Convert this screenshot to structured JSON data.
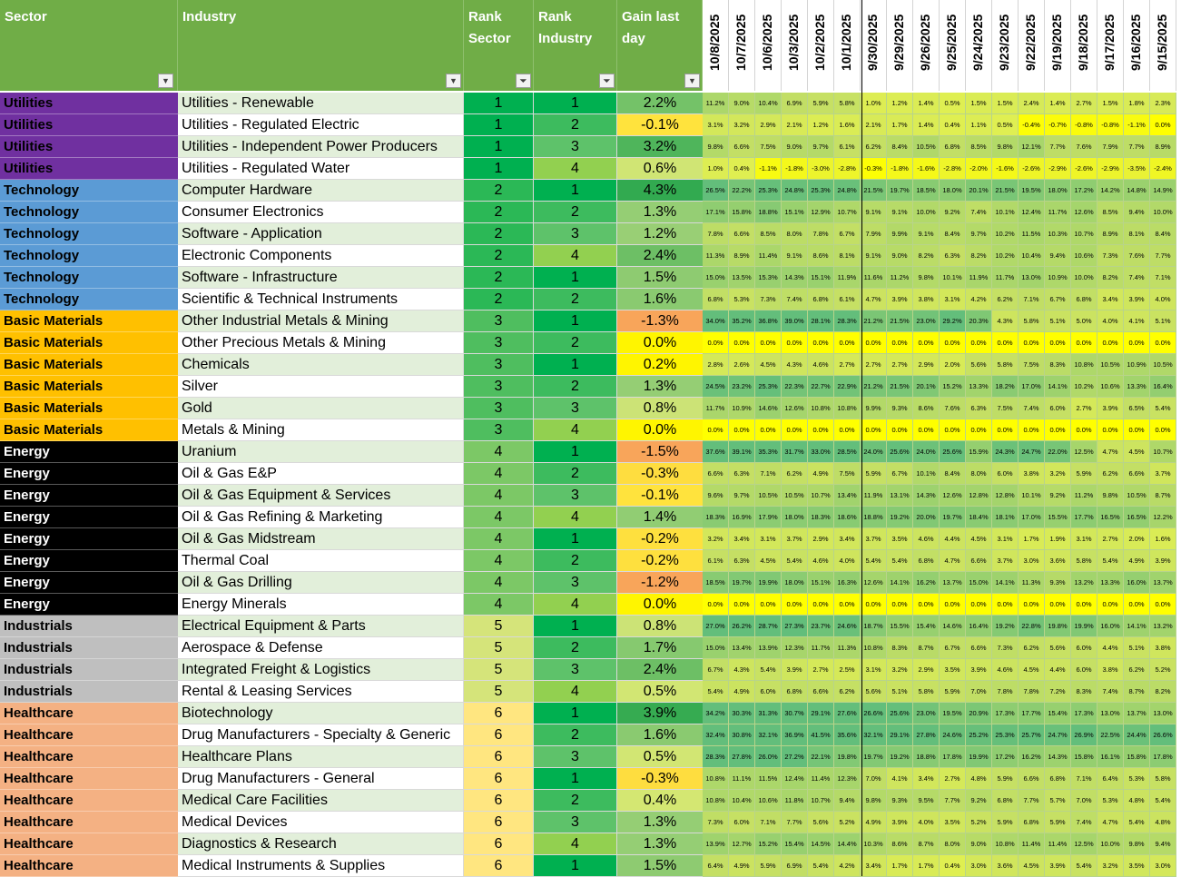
{
  "headers": {
    "sector": "Sector",
    "industry": "Industry",
    "rank_sector": "Rank\nSector",
    "rank_industry": "Rank\nIndustry",
    "gain": "Gain last\nday"
  },
  "dates": [
    "10/8/2025",
    "10/7/2025",
    "10/6/2025",
    "10/3/2025",
    "10/2/2025",
    "10/1/2025",
    "9/30/2025",
    "9/29/2025",
    "9/26/2025",
    "9/25/2025",
    "9/24/2025",
    "9/23/2025",
    "9/22/2025",
    "9/19/2025",
    "9/18/2025",
    "9/17/2025",
    "9/16/2025",
    "9/15/2025"
  ],
  "sector_colors": {
    "Utilities": {
      "bg": "#7030a0",
      "fg": "#000000"
    },
    "Technology": {
      "bg": "#5b9bd5",
      "fg": "#000000"
    },
    "Basic Materials": {
      "bg": "#ffc000",
      "fg": "#000000"
    },
    "Energy": {
      "bg": "#000000",
      "fg": "#ffffff"
    },
    "Industrials": {
      "bg": "#bfbfbf",
      "fg": "#000000"
    },
    "Healthcare": {
      "bg": "#f4b183",
      "fg": "#000000"
    }
  },
  "rows": [
    {
      "sector": "Utilities",
      "industry": "Utilities - Renewable",
      "rank_sector": "1",
      "rank_industry": "1",
      "gain": "2.2%",
      "history": [
        "11.2%",
        "9.0%",
        "10.4%",
        "6.9%",
        "5.9%",
        "5.8%",
        "1.0%",
        "1.2%",
        "1.4%",
        "0.5%",
        "1.5%",
        "1.5%",
        "2.4%",
        "1.4%",
        "2.7%",
        "1.5%",
        "1.8%",
        "2.3%"
      ]
    },
    {
      "sector": "Utilities",
      "industry": "Utilities - Regulated Electric",
      "rank_sector": "1",
      "rank_industry": "2",
      "gain": "-0.1%",
      "history": [
        "3.1%",
        "3.2%",
        "2.9%",
        "2.1%",
        "1.2%",
        "1.6%",
        "2.1%",
        "1.7%",
        "1.4%",
        "0.4%",
        "1.1%",
        "0.5%",
        "-0.4%",
        "-0.7%",
        "-0.8%",
        "-0.8%",
        "-1.1%",
        "0.0%"
      ]
    },
    {
      "sector": "Utilities",
      "industry": "Utilities - Independent Power Producers",
      "rank_sector": "1",
      "rank_industry": "3",
      "gain": "3.2%",
      "history": [
        "9.8%",
        "6.6%",
        "7.5%",
        "9.0%",
        "9.7%",
        "6.1%",
        "6.2%",
        "8.4%",
        "10.5%",
        "6.8%",
        "8.5%",
        "9.8%",
        "12.1%",
        "7.7%",
        "7.6%",
        "7.9%",
        "7.7%",
        "8.9%"
      ]
    },
    {
      "sector": "Utilities",
      "industry": "Utilities - Regulated Water",
      "rank_sector": "1",
      "rank_industry": "4",
      "gain": "0.6%",
      "history": [
        "1.0%",
        "0.4%",
        "-1.1%",
        "-1.8%",
        "-3.0%",
        "-2.8%",
        "-0.3%",
        "-1.8%",
        "-1.6%",
        "-2.8%",
        "-2.0%",
        "-1.6%",
        "-2.6%",
        "-2.9%",
        "-2.6%",
        "-2.9%",
        "-3.5%",
        "-2.4%"
      ]
    },
    {
      "sector": "Technology",
      "industry": "Computer Hardware",
      "rank_sector": "2",
      "rank_industry": "1",
      "gain": "4.3%",
      "history": [
        "26.5%",
        "22.2%",
        "25.3%",
        "24.8%",
        "25.3%",
        "24.8%",
        "21.5%",
        "19.7%",
        "18.5%",
        "18.0%",
        "20.1%",
        "21.5%",
        "19.5%",
        "18.0%",
        "17.2%",
        "14.2%",
        "14.8%",
        "14.9%"
      ]
    },
    {
      "sector": "Technology",
      "industry": "Consumer Electronics",
      "rank_sector": "2",
      "rank_industry": "2",
      "gain": "1.3%",
      "history": [
        "17.1%",
        "15.8%",
        "18.8%",
        "15.1%",
        "12.9%",
        "10.7%",
        "9.1%",
        "9.1%",
        "10.0%",
        "9.2%",
        "7.4%",
        "10.1%",
        "12.4%",
        "11.7%",
        "12.6%",
        "8.5%",
        "9.4%",
        "10.0%"
      ]
    },
    {
      "sector": "Technology",
      "industry": "Software - Application",
      "rank_sector": "2",
      "rank_industry": "3",
      "gain": "1.2%",
      "history": [
        "7.8%",
        "6.6%",
        "8.5%",
        "8.0%",
        "7.8%",
        "6.7%",
        "7.9%",
        "9.9%",
        "9.1%",
        "8.4%",
        "9.7%",
        "10.2%",
        "11.5%",
        "10.3%",
        "10.7%",
        "8.9%",
        "8.1%",
        "8.4%"
      ]
    },
    {
      "sector": "Technology",
      "industry": "Electronic Components",
      "rank_sector": "2",
      "rank_industry": "4",
      "gain": "2.4%",
      "history": [
        "11.3%",
        "8.9%",
        "11.4%",
        "9.1%",
        "8.6%",
        "8.1%",
        "9.1%",
        "9.0%",
        "8.2%",
        "6.3%",
        "8.2%",
        "10.2%",
        "10.4%",
        "9.4%",
        "10.6%",
        "7.3%",
        "7.6%",
        "7.7%"
      ]
    },
    {
      "sector": "Technology",
      "industry": "Software - Infrastructure",
      "rank_sector": "2",
      "rank_industry": "1",
      "gain": "1.5%",
      "history": [
        "15.0%",
        "13.5%",
        "15.3%",
        "14.3%",
        "15.1%",
        "11.9%",
        "11.6%",
        "11.2%",
        "9.8%",
        "10.1%",
        "11.9%",
        "11.7%",
        "13.0%",
        "10.9%",
        "10.0%",
        "8.2%",
        "7.4%",
        "7.1%"
      ]
    },
    {
      "sector": "Technology",
      "industry": "Scientific & Technical Instruments",
      "rank_sector": "2",
      "rank_industry": "2",
      "gain": "1.6%",
      "history": [
        "6.8%",
        "5.3%",
        "7.3%",
        "7.4%",
        "6.8%",
        "6.1%",
        "4.7%",
        "3.9%",
        "3.8%",
        "3.1%",
        "4.2%",
        "6.2%",
        "7.1%",
        "6.7%",
        "6.8%",
        "3.4%",
        "3.9%",
        "4.0%"
      ]
    },
    {
      "sector": "Basic Materials",
      "industry": "Other Industrial Metals & Mining",
      "rank_sector": "3",
      "rank_industry": "1",
      "gain": "-1.3%",
      "history": [
        "34.0%",
        "35.2%",
        "36.8%",
        "39.0%",
        "28.1%",
        "28.3%",
        "21.2%",
        "21.5%",
        "23.0%",
        "29.2%",
        "20.3%",
        "4.3%",
        "5.8%",
        "5.1%",
        "5.0%",
        "4.0%",
        "4.1%",
        "5.1%"
      ]
    },
    {
      "sector": "Basic Materials",
      "industry": "Other Precious Metals & Mining",
      "rank_sector": "3",
      "rank_industry": "2",
      "gain": "0.0%",
      "history": [
        "0.0%",
        "0.0%",
        "0.0%",
        "0.0%",
        "0.0%",
        "0.0%",
        "0.0%",
        "0.0%",
        "0.0%",
        "0.0%",
        "0.0%",
        "0.0%",
        "0.0%",
        "0.0%",
        "0.0%",
        "0.0%",
        "0.0%",
        "0.0%"
      ]
    },
    {
      "sector": "Basic Materials",
      "industry": "Chemicals",
      "rank_sector": "3",
      "rank_industry": "1",
      "gain": "0.2%",
      "history": [
        "2.8%",
        "2.6%",
        "4.5%",
        "4.3%",
        "4.6%",
        "2.7%",
        "2.7%",
        "2.7%",
        "2.9%",
        "2.0%",
        "5.6%",
        "5.8%",
        "7.5%",
        "8.3%",
        "10.8%",
        "10.5%",
        "10.9%",
        "10.5%"
      ]
    },
    {
      "sector": "Basic Materials",
      "industry": "Silver",
      "rank_sector": "3",
      "rank_industry": "2",
      "gain": "1.3%",
      "history": [
        "24.5%",
        "23.2%",
        "25.3%",
        "22.3%",
        "22.7%",
        "22.9%",
        "21.2%",
        "21.5%",
        "20.1%",
        "15.2%",
        "13.3%",
        "18.2%",
        "17.0%",
        "14.1%",
        "10.2%",
        "10.6%",
        "13.3%",
        "16.4%"
      ]
    },
    {
      "sector": "Basic Materials",
      "industry": "Gold",
      "rank_sector": "3",
      "rank_industry": "3",
      "gain": "0.8%",
      "history": [
        "11.7%",
        "10.9%",
        "14.6%",
        "12.6%",
        "10.8%",
        "10.8%",
        "9.9%",
        "9.3%",
        "8.6%",
        "7.6%",
        "6.3%",
        "7.5%",
        "7.4%",
        "6.0%",
        "2.7%",
        "3.9%",
        "6.5%",
        "5.4%"
      ]
    },
    {
      "sector": "Basic Materials",
      "industry": "Metals & Mining",
      "rank_sector": "3",
      "rank_industry": "4",
      "gain": "0.0%",
      "history": [
        "0.0%",
        "0.0%",
        "0.0%",
        "0.0%",
        "0.0%",
        "0.0%",
        "0.0%",
        "0.0%",
        "0.0%",
        "0.0%",
        "0.0%",
        "0.0%",
        "0.0%",
        "0.0%",
        "0.0%",
        "0.0%",
        "0.0%",
        "0.0%"
      ]
    },
    {
      "sector": "Energy",
      "industry": "Uranium",
      "rank_sector": "4",
      "rank_industry": "1",
      "gain": "-1.5%",
      "history": [
        "37.6%",
        "39.1%",
        "35.3%",
        "31.7%",
        "33.0%",
        "28.5%",
        "24.0%",
        "25.6%",
        "24.0%",
        "25.6%",
        "15.9%",
        "24.3%",
        "24.7%",
        "22.0%",
        "12.5%",
        "4.7%",
        "4.5%",
        "10.7%"
      ]
    },
    {
      "sector": "Energy",
      "industry": "Oil & Gas E&P",
      "rank_sector": "4",
      "rank_industry": "2",
      "gain": "-0.3%",
      "history": [
        "6.6%",
        "6.3%",
        "7.1%",
        "6.2%",
        "4.9%",
        "7.5%",
        "5.9%",
        "6.7%",
        "10.1%",
        "8.4%",
        "8.0%",
        "6.0%",
        "3.8%",
        "3.2%",
        "5.9%",
        "6.2%",
        "6.6%",
        "3.7%"
      ]
    },
    {
      "sector": "Energy",
      "industry": "Oil & Gas Equipment & Services",
      "rank_sector": "4",
      "rank_industry": "3",
      "gain": "-0.1%",
      "history": [
        "9.6%",
        "9.7%",
        "10.5%",
        "10.5%",
        "10.7%",
        "13.4%",
        "11.9%",
        "13.1%",
        "14.3%",
        "12.6%",
        "12.8%",
        "12.8%",
        "10.1%",
        "9.2%",
        "11.2%",
        "9.8%",
        "10.5%",
        "8.7%"
      ]
    },
    {
      "sector": "Energy",
      "industry": "Oil & Gas Refining & Marketing",
      "rank_sector": "4",
      "rank_industry": "4",
      "gain": "1.4%",
      "history": [
        "18.3%",
        "16.9%",
        "17.9%",
        "18.0%",
        "18.3%",
        "18.6%",
        "18.8%",
        "19.2%",
        "20.0%",
        "19.7%",
        "18.4%",
        "18.1%",
        "17.0%",
        "15.5%",
        "17.7%",
        "16.5%",
        "16.5%",
        "12.2%"
      ]
    },
    {
      "sector": "Energy",
      "industry": "Oil & Gas Midstream",
      "rank_sector": "4",
      "rank_industry": "1",
      "gain": "-0.2%",
      "history": [
        "3.2%",
        "3.4%",
        "3.1%",
        "3.7%",
        "2.9%",
        "3.4%",
        "3.7%",
        "3.5%",
        "4.6%",
        "4.4%",
        "4.5%",
        "3.1%",
        "1.7%",
        "1.9%",
        "3.1%",
        "2.7%",
        "2.0%",
        "1.6%"
      ]
    },
    {
      "sector": "Energy",
      "industry": "Thermal Coal",
      "rank_sector": "4",
      "rank_industry": "2",
      "gain": "-0.2%",
      "history": [
        "6.1%",
        "6.3%",
        "4.5%",
        "5.4%",
        "4.6%",
        "4.0%",
        "5.4%",
        "5.4%",
        "6.8%",
        "4.7%",
        "6.6%",
        "3.7%",
        "3.0%",
        "3.6%",
        "5.8%",
        "5.4%",
        "4.9%",
        "3.9%"
      ]
    },
    {
      "sector": "Energy",
      "industry": "Oil & Gas Drilling",
      "rank_sector": "4",
      "rank_industry": "3",
      "gain": "-1.2%",
      "history": [
        "18.5%",
        "19.7%",
        "19.9%",
        "18.0%",
        "15.1%",
        "16.3%",
        "12.6%",
        "14.1%",
        "16.2%",
        "13.7%",
        "15.0%",
        "14.1%",
        "11.3%",
        "9.3%",
        "13.2%",
        "13.3%",
        "16.0%",
        "13.7%"
      ]
    },
    {
      "sector": "Energy",
      "industry": "Energy Minerals",
      "rank_sector": "4",
      "rank_industry": "4",
      "gain": "0.0%",
      "history": [
        "0.0%",
        "0.0%",
        "0.0%",
        "0.0%",
        "0.0%",
        "0.0%",
        "0.0%",
        "0.0%",
        "0.0%",
        "0.0%",
        "0.0%",
        "0.0%",
        "0.0%",
        "0.0%",
        "0.0%",
        "0.0%",
        "0.0%",
        "0.0%"
      ]
    },
    {
      "sector": "Industrials",
      "industry": "Electrical Equipment & Parts",
      "rank_sector": "5",
      "rank_industry": "1",
      "gain": "0.8%",
      "history": [
        "27.0%",
        "26.2%",
        "28.7%",
        "27.3%",
        "23.7%",
        "24.6%",
        "18.7%",
        "15.5%",
        "15.4%",
        "14.6%",
        "16.4%",
        "19.2%",
        "22.8%",
        "19.8%",
        "19.9%",
        "16.0%",
        "14.1%",
        "13.2%"
      ]
    },
    {
      "sector": "Industrials",
      "industry": "Aerospace & Defense",
      "rank_sector": "5",
      "rank_industry": "2",
      "gain": "1.7%",
      "history": [
        "15.0%",
        "13.4%",
        "13.9%",
        "12.3%",
        "11.7%",
        "11.3%",
        "10.8%",
        "8.3%",
        "8.7%",
        "6.7%",
        "6.6%",
        "7.3%",
        "6.2%",
        "5.6%",
        "6.0%",
        "4.4%",
        "5.1%",
        "3.8%"
      ]
    },
    {
      "sector": "Industrials",
      "industry": "Integrated Freight & Logistics",
      "rank_sector": "5",
      "rank_industry": "3",
      "gain": "2.4%",
      "history": [
        "6.7%",
        "4.3%",
        "5.4%",
        "3.9%",
        "2.7%",
        "2.5%",
        "3.1%",
        "3.2%",
        "2.9%",
        "3.5%",
        "3.9%",
        "4.6%",
        "4.5%",
        "4.4%",
        "6.0%",
        "3.8%",
        "6.2%",
        "5.2%"
      ]
    },
    {
      "sector": "Industrials",
      "industry": "Rental & Leasing Services",
      "rank_sector": "5",
      "rank_industry": "4",
      "gain": "0.5%",
      "history": [
        "5.4%",
        "4.9%",
        "6.0%",
        "6.8%",
        "6.6%",
        "6.2%",
        "5.6%",
        "5.1%",
        "5.8%",
        "5.9%",
        "7.0%",
        "7.8%",
        "7.8%",
        "7.2%",
        "8.3%",
        "7.4%",
        "8.7%",
        "8.2%"
      ]
    },
    {
      "sector": "Healthcare",
      "industry": "Biotechnology",
      "rank_sector": "6",
      "rank_industry": "1",
      "gain": "3.9%",
      "history": [
        "34.2%",
        "30.3%",
        "31.3%",
        "30.7%",
        "29.1%",
        "27.6%",
        "26.6%",
        "25.6%",
        "23.0%",
        "19.5%",
        "20.9%",
        "17.3%",
        "17.7%",
        "15.4%",
        "17.3%",
        "13.0%",
        "13.7%",
        "13.0%"
      ]
    },
    {
      "sector": "Healthcare",
      "industry": "Drug Manufacturers - Specialty & Generic",
      "rank_sector": "6",
      "rank_industry": "2",
      "gain": "1.6%",
      "history": [
        "32.4%",
        "30.8%",
        "32.1%",
        "36.9%",
        "41.5%",
        "35.6%",
        "32.1%",
        "29.1%",
        "27.8%",
        "24.6%",
        "25.2%",
        "25.3%",
        "25.7%",
        "24.7%",
        "26.9%",
        "22.5%",
        "24.4%",
        "26.6%"
      ]
    },
    {
      "sector": "Healthcare",
      "industry": "Healthcare Plans",
      "rank_sector": "6",
      "rank_industry": "3",
      "gain": "0.5%",
      "history": [
        "28.3%",
        "27.8%",
        "26.0%",
        "27.2%",
        "22.1%",
        "19.8%",
        "19.7%",
        "19.2%",
        "18.8%",
        "17.8%",
        "19.9%",
        "17.2%",
        "16.2%",
        "14.3%",
        "15.8%",
        "16.1%",
        "15.8%",
        "17.8%"
      ]
    },
    {
      "sector": "Healthcare",
      "industry": "Drug Manufacturers - General",
      "rank_sector": "6",
      "rank_industry": "1",
      "gain": "-0.3%",
      "history": [
        "10.8%",
        "11.1%",
        "11.5%",
        "12.4%",
        "11.4%",
        "12.3%",
        "7.0%",
        "4.1%",
        "3.4%",
        "2.7%",
        "4.8%",
        "5.9%",
        "6.6%",
        "6.8%",
        "7.1%",
        "6.4%",
        "5.3%",
        "5.8%"
      ]
    },
    {
      "sector": "Healthcare",
      "industry": "Medical Care Facilities",
      "rank_sector": "6",
      "rank_industry": "2",
      "gain": "0.4%",
      "history": [
        "10.8%",
        "10.4%",
        "10.6%",
        "11.8%",
        "10.7%",
        "9.4%",
        "9.8%",
        "9.3%",
        "9.5%",
        "7.7%",
        "9.2%",
        "6.8%",
        "7.7%",
        "5.7%",
        "7.0%",
        "5.3%",
        "4.8%",
        "5.4%"
      ]
    },
    {
      "sector": "Healthcare",
      "industry": "Medical Devices",
      "rank_sector": "6",
      "rank_industry": "3",
      "gain": "1.3%",
      "history": [
        "7.3%",
        "6.0%",
        "7.1%",
        "7.7%",
        "5.6%",
        "5.2%",
        "4.9%",
        "3.9%",
        "4.0%",
        "3.5%",
        "5.2%",
        "5.9%",
        "6.8%",
        "5.9%",
        "7.4%",
        "4.7%",
        "5.4%",
        "4.8%"
      ]
    },
    {
      "sector": "Healthcare",
      "industry": "Diagnostics & Research",
      "rank_sector": "6",
      "rank_industry": "4",
      "gain": "1.3%",
      "history": [
        "13.9%",
        "12.7%",
        "15.2%",
        "15.4%",
        "14.5%",
        "14.4%",
        "10.3%",
        "8.6%",
        "8.7%",
        "8.0%",
        "9.0%",
        "10.8%",
        "11.4%",
        "11.4%",
        "12.5%",
        "10.0%",
        "9.8%",
        "9.4%"
      ]
    },
    {
      "sector": "Healthcare",
      "industry": "Medical Instruments & Supplies",
      "rank_sector": "6",
      "rank_industry": "1",
      "gain": "1.5%",
      "history": [
        "6.4%",
        "4.9%",
        "5.9%",
        "6.9%",
        "5.4%",
        "4.2%",
        "3.4%",
        "1.7%",
        "1.7%",
        "0.4%",
        "3.0%",
        "3.6%",
        "4.5%",
        "3.9%",
        "5.4%",
        "3.2%",
        "3.5%",
        "3.0%"
      ]
    }
  ]
}
